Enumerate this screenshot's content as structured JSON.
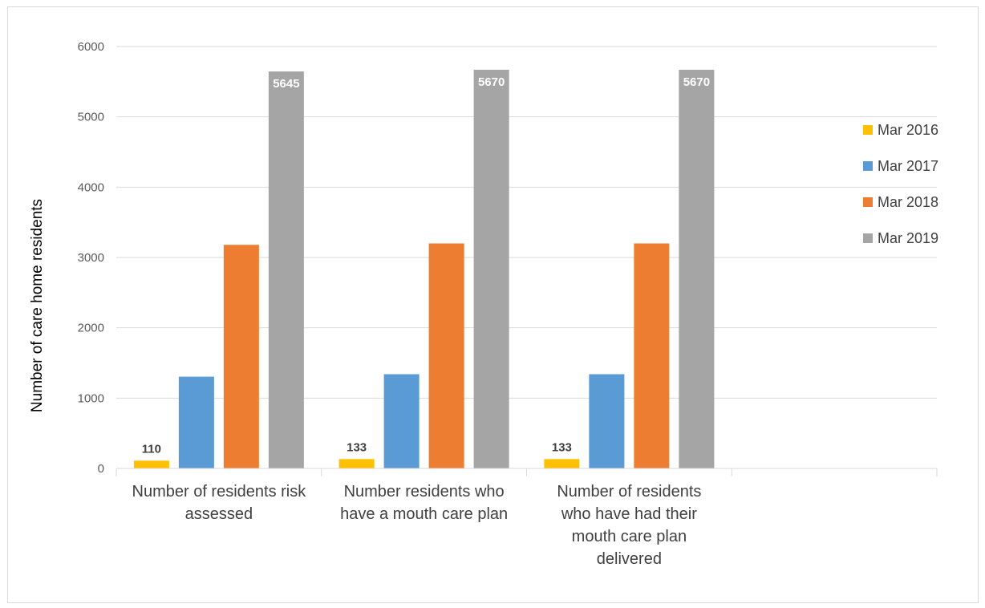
{
  "chart_data": {
    "type": "bar",
    "ylabel": "Number of care home residents",
    "ylim": [
      0,
      6000
    ],
    "yticks": [
      0,
      1000,
      2000,
      3000,
      4000,
      5000,
      6000
    ],
    "grid": true,
    "legend_position": "right",
    "categories": [
      [
        "Number of residents risk",
        "assessed"
      ],
      [
        "Number residents who",
        "have a mouth care plan"
      ],
      [
        "Number of residents",
        "who have had their",
        "mouth care plan",
        "delivered"
      ]
    ],
    "series": [
      {
        "name": "Mar 2016",
        "color": "#FFC000",
        "values": [
          110,
          133,
          133
        ],
        "labels": [
          "110",
          "133",
          "133"
        ],
        "label_color": "#404040",
        "label_pos": "above"
      },
      {
        "name": "Mar 2017",
        "color": "#5B9BD5",
        "values": [
          1305,
          1340,
          1340
        ],
        "labels": [
          null,
          null,
          null
        ]
      },
      {
        "name": "Mar 2018",
        "color": "#ED7D31",
        "values": [
          3180,
          3200,
          3200
        ],
        "labels": [
          null,
          null,
          null
        ]
      },
      {
        "name": "Mar 2019",
        "color": "#A5A5A5",
        "values": [
          5645,
          5670,
          5670
        ],
        "labels": [
          "5645",
          "5670",
          "5670"
        ],
        "label_color": "#ffffff",
        "label_pos": "inside-top"
      }
    ]
  }
}
